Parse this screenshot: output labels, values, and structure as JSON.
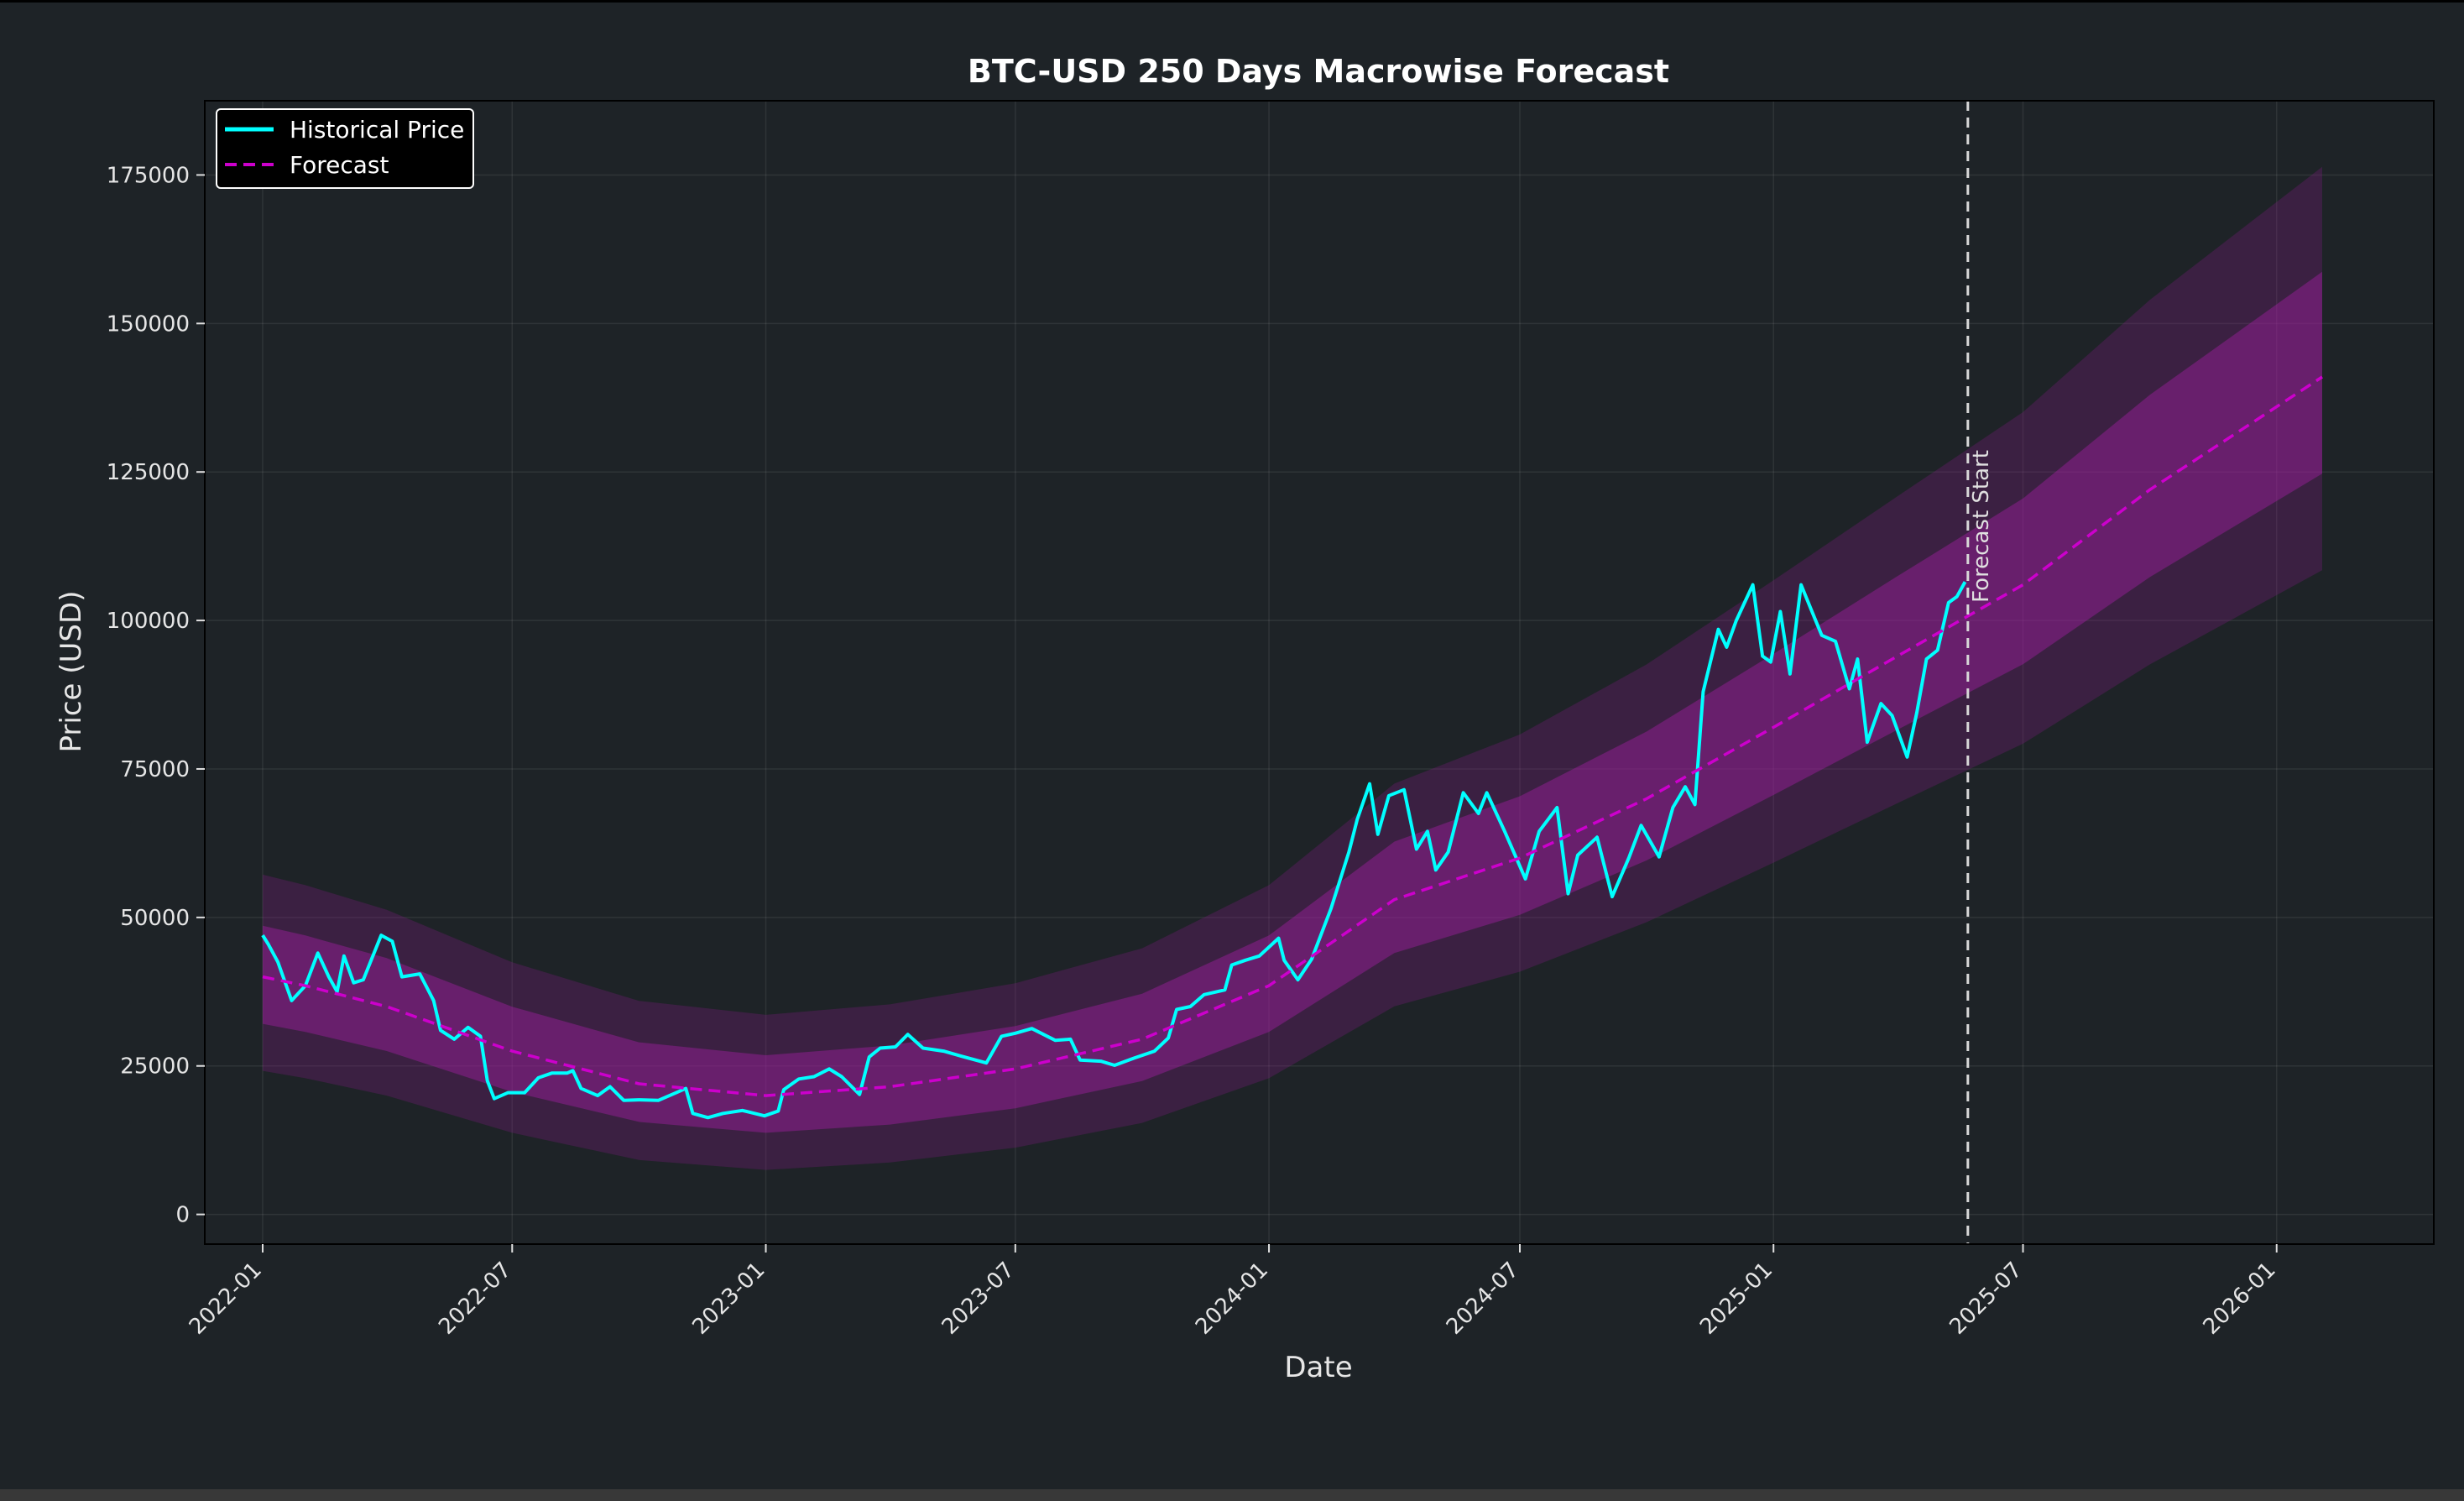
{
  "chart_data": {
    "type": "line",
    "title": "BTC-USD 250 Days Macrowise Forecast",
    "xlabel": "Date",
    "ylabel": "Price (USD)",
    "xlim": [
      "2021-11-20",
      "2026-04-25"
    ],
    "ylim": [
      -5000,
      187500
    ],
    "yticks": [
      0,
      25000,
      50000,
      75000,
      100000,
      125000,
      150000,
      175000
    ],
    "xticks": [
      "2022-01",
      "2022-07",
      "2023-01",
      "2023-07",
      "2024-01",
      "2024-07",
      "2025-01",
      "2025-07",
      "2026-01"
    ],
    "grid": true,
    "legend_position": "top-left",
    "series": [
      {
        "name": "Historical Price",
        "style": "solid",
        "color": "#00ffff",
        "points": [
          [
            "2022-01-01",
            47000
          ],
          [
            "2022-01-05",
            45500
          ],
          [
            "2022-01-12",
            42500
          ],
          [
            "2022-01-22",
            36000
          ],
          [
            "2022-02-01",
            38500
          ],
          [
            "2022-02-10",
            44000
          ],
          [
            "2022-02-18",
            40000
          ],
          [
            "2022-02-24",
            37500
          ],
          [
            "2022-03-01",
            43500
          ],
          [
            "2022-03-08",
            39000
          ],
          [
            "2022-03-15",
            39500
          ],
          [
            "2022-03-28",
            47000
          ],
          [
            "2022-04-05",
            46000
          ],
          [
            "2022-04-12",
            40000
          ],
          [
            "2022-04-25",
            40500
          ],
          [
            "2022-05-05",
            36000
          ],
          [
            "2022-05-10",
            31000
          ],
          [
            "2022-05-20",
            29500
          ],
          [
            "2022-05-30",
            31500
          ],
          [
            "2022-06-08",
            30000
          ],
          [
            "2022-06-13",
            22500
          ],
          [
            "2022-06-18",
            19500
          ],
          [
            "2022-06-28",
            20500
          ],
          [
            "2022-07-10",
            20500
          ],
          [
            "2022-07-20",
            23000
          ],
          [
            "2022-07-30",
            23800
          ],
          [
            "2022-08-10",
            23800
          ],
          [
            "2022-08-14",
            24200
          ],
          [
            "2022-08-20",
            21200
          ],
          [
            "2022-09-01",
            20000
          ],
          [
            "2022-09-10",
            21500
          ],
          [
            "2022-09-20",
            19200
          ],
          [
            "2022-10-01",
            19300
          ],
          [
            "2022-10-15",
            19200
          ],
          [
            "2022-10-28",
            20500
          ],
          [
            "2022-11-04",
            21200
          ],
          [
            "2022-11-09",
            17000
          ],
          [
            "2022-11-20",
            16300
          ],
          [
            "2022-12-01",
            17000
          ],
          [
            "2022-12-15",
            17500
          ],
          [
            "2022-12-31",
            16600
          ],
          [
            "2023-01-10",
            17400
          ],
          [
            "2023-01-14",
            21000
          ],
          [
            "2023-01-25",
            22800
          ],
          [
            "2023-02-05",
            23200
          ],
          [
            "2023-02-16",
            24500
          ],
          [
            "2023-02-25",
            23200
          ],
          [
            "2023-03-10",
            20200
          ],
          [
            "2023-03-17",
            26500
          ],
          [
            "2023-03-25",
            28000
          ],
          [
            "2023-04-05",
            28200
          ],
          [
            "2023-04-14",
            30300
          ],
          [
            "2023-04-25",
            28000
          ],
          [
            "2023-05-10",
            27500
          ],
          [
            "2023-05-25",
            26500
          ],
          [
            "2023-06-10",
            25500
          ],
          [
            "2023-06-21",
            30000
          ],
          [
            "2023-07-01",
            30500
          ],
          [
            "2023-07-13",
            31300
          ],
          [
            "2023-07-30",
            29300
          ],
          [
            "2023-08-10",
            29500
          ],
          [
            "2023-08-17",
            26000
          ],
          [
            "2023-09-01",
            25800
          ],
          [
            "2023-09-11",
            25100
          ],
          [
            "2023-09-25",
            26300
          ],
          [
            "2023-10-10",
            27500
          ],
          [
            "2023-10-20",
            29700
          ],
          [
            "2023-10-26",
            34500
          ],
          [
            "2023-11-05",
            35000
          ],
          [
            "2023-11-15",
            37000
          ],
          [
            "2023-11-30",
            37800
          ],
          [
            "2023-12-05",
            42000
          ],
          [
            "2023-12-15",
            42800
          ],
          [
            "2023-12-25",
            43500
          ],
          [
            "2024-01-08",
            46500
          ],
          [
            "2024-01-12",
            42800
          ],
          [
            "2024-01-22",
            39500
          ],
          [
            "2024-02-01",
            43000
          ],
          [
            "2024-02-15",
            51500
          ],
          [
            "2024-02-28",
            61000
          ],
          [
            "2024-03-05",
            66500
          ],
          [
            "2024-03-14",
            72500
          ],
          [
            "2024-03-20",
            64000
          ],
          [
            "2024-03-28",
            70500
          ],
          [
            "2024-04-08",
            71500
          ],
          [
            "2024-04-17",
            61500
          ],
          [
            "2024-04-25",
            64500
          ],
          [
            "2024-05-01",
            58000
          ],
          [
            "2024-05-10",
            61000
          ],
          [
            "2024-05-21",
            71000
          ],
          [
            "2024-06-01",
            67500
          ],
          [
            "2024-06-07",
            71000
          ],
          [
            "2024-06-20",
            64500
          ],
          [
            "2024-07-05",
            56500
          ],
          [
            "2024-07-15",
            64500
          ],
          [
            "2024-07-28",
            68500
          ],
          [
            "2024-08-05",
            54000
          ],
          [
            "2024-08-12",
            60500
          ],
          [
            "2024-08-26",
            63500
          ],
          [
            "2024-09-06",
            53500
          ],
          [
            "2024-09-18",
            60000
          ],
          [
            "2024-09-27",
            65500
          ],
          [
            "2024-10-10",
            60200
          ],
          [
            "2024-10-20",
            68500
          ],
          [
            "2024-10-29",
            72000
          ],
          [
            "2024-11-05",
            69000
          ],
          [
            "2024-11-11",
            88000
          ],
          [
            "2024-11-22",
            98500
          ],
          [
            "2024-11-28",
            95500
          ],
          [
            "2024-12-05",
            100000
          ],
          [
            "2024-12-17",
            106000
          ],
          [
            "2024-12-24",
            94000
          ],
          [
            "2024-12-30",
            93000
          ],
          [
            "2025-01-06",
            101500
          ],
          [
            "2025-01-13",
            91000
          ],
          [
            "2025-01-21",
            106000
          ],
          [
            "2025-01-28",
            102000
          ],
          [
            "2025-02-05",
            97500
          ],
          [
            "2025-02-15",
            96500
          ],
          [
            "2025-02-25",
            88500
          ],
          [
            "2025-03-03",
            93500
          ],
          [
            "2025-03-10",
            79500
          ],
          [
            "2025-03-20",
            86000
          ],
          [
            "2025-03-28",
            84000
          ],
          [
            "2025-04-08",
            77000
          ],
          [
            "2025-04-15",
            84500
          ],
          [
            "2025-04-22",
            93500
          ],
          [
            "2025-04-30",
            95000
          ],
          [
            "2025-05-08",
            103000
          ],
          [
            "2025-05-14",
            104000
          ],
          [
            "2025-05-20",
            106500
          ]
        ]
      },
      {
        "name": "Forecast",
        "style": "dashed",
        "color": "#cc00cc",
        "points": [
          [
            "2022-01-01",
            40000
          ],
          [
            "2022-02-01",
            38500
          ],
          [
            "2022-04-01",
            35000
          ],
          [
            "2022-07-01",
            27500
          ],
          [
            "2022-10-01",
            22000
          ],
          [
            "2023-01-01",
            20000
          ],
          [
            "2023-04-01",
            21500
          ],
          [
            "2023-07-01",
            24500
          ],
          [
            "2023-10-01",
            29500
          ],
          [
            "2024-01-01",
            38500
          ],
          [
            "2024-04-01",
            53000
          ],
          [
            "2024-07-01",
            60000
          ],
          [
            "2024-10-01",
            70000
          ],
          [
            "2025-01-01",
            82000
          ],
          [
            "2025-04-01",
            94000
          ],
          [
            "2025-07-01",
            106000
          ],
          [
            "2025-10-01",
            122000
          ],
          [
            "2026-02-03",
            141000
          ]
        ]
      }
    ],
    "annotations": [
      {
        "type": "vline",
        "x": "2025-05-22",
        "label": "Forecast Start"
      }
    ]
  }
}
